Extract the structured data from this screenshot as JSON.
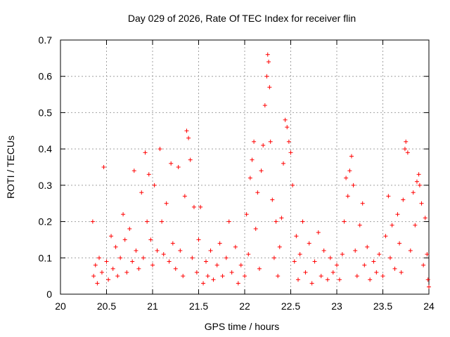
{
  "chart_data": {
    "type": "scatter",
    "title": "Day 029 of 2026, Rate Of TEC Index for receiver flin",
    "xlabel": "GPS time / hours",
    "ylabel": "ROTI / TECUs",
    "xlim": [
      20,
      24
    ],
    "ylim": [
      0,
      0.7
    ],
    "x_ticks": [
      20,
      20.5,
      21,
      21.5,
      22,
      22.5,
      23,
      23.5,
      24
    ],
    "x_tick_labels": [
      "20",
      "20.5",
      "21",
      "21.5",
      "22",
      "22.5",
      "23",
      "23.5",
      "24"
    ],
    "y_ticks": [
      0,
      0.1,
      0.2,
      0.3,
      0.4,
      0.5,
      0.6,
      0.7
    ],
    "y_tick_labels": [
      "0",
      "0.1",
      "0.2",
      "0.3",
      "0.4",
      "0.5",
      "0.6",
      "0.7"
    ],
    "grid": true,
    "marker": "+",
    "series": [
      {
        "color": "#ff0000",
        "points": [
          [
            20.35,
            0.2
          ],
          [
            20.36,
            0.05
          ],
          [
            20.38,
            0.08
          ],
          [
            20.4,
            0.03
          ],
          [
            20.42,
            0.1
          ],
          [
            20.45,
            0.06
          ],
          [
            20.47,
            0.35
          ],
          [
            20.5,
            0.09
          ],
          [
            20.52,
            0.04
          ],
          [
            20.55,
            0.16
          ],
          [
            20.57,
            0.07
          ],
          [
            20.6,
            0.13
          ],
          [
            20.62,
            0.05
          ],
          [
            20.65,
            0.1
          ],
          [
            20.68,
            0.22
          ],
          [
            20.7,
            0.15
          ],
          [
            20.72,
            0.06
          ],
          [
            20.75,
            0.18
          ],
          [
            20.78,
            0.09
          ],
          [
            20.8,
            0.34
          ],
          [
            20.82,
            0.12
          ],
          [
            20.85,
            0.07
          ],
          [
            20.88,
            0.28
          ],
          [
            20.9,
            0.1
          ],
          [
            20.92,
            0.39
          ],
          [
            20.94,
            0.2
          ],
          [
            20.96,
            0.33
          ],
          [
            20.98,
            0.15
          ],
          [
            21.0,
            0.08
          ],
          [
            21.02,
            0.3
          ],
          [
            21.05,
            0.12
          ],
          [
            21.08,
            0.4
          ],
          [
            21.1,
            0.2
          ],
          [
            21.12,
            0.11
          ],
          [
            21.15,
            0.25
          ],
          [
            21.18,
            0.09
          ],
          [
            21.2,
            0.36
          ],
          [
            21.22,
            0.14
          ],
          [
            21.25,
            0.07
          ],
          [
            21.28,
            0.35
          ],
          [
            21.3,
            0.12
          ],
          [
            21.33,
            0.05
          ],
          [
            21.35,
            0.27
          ],
          [
            21.37,
            0.45
          ],
          [
            21.39,
            0.43
          ],
          [
            21.41,
            0.37
          ],
          [
            21.43,
            0.1
          ],
          [
            21.45,
            0.24
          ],
          [
            21.48,
            0.06
          ],
          [
            21.5,
            0.15
          ],
          [
            21.52,
            0.24
          ],
          [
            21.55,
            0.03
          ],
          [
            21.58,
            0.09
          ],
          [
            21.6,
            0.05
          ],
          [
            21.63,
            0.12
          ],
          [
            21.66,
            0.04
          ],
          [
            21.7,
            0.08
          ],
          [
            21.73,
            0.14
          ],
          [
            21.76,
            0.05
          ],
          [
            21.8,
            0.1
          ],
          [
            21.83,
            0.2
          ],
          [
            21.86,
            0.06
          ],
          [
            21.9,
            0.13
          ],
          [
            21.93,
            0.03
          ],
          [
            21.96,
            0.08
          ],
          [
            22.0,
            0.05
          ],
          [
            22.02,
            0.22
          ],
          [
            22.04,
            0.11
          ],
          [
            22.06,
            0.32
          ],
          [
            22.08,
            0.37
          ],
          [
            22.1,
            0.42
          ],
          [
            22.12,
            0.18
          ],
          [
            22.14,
            0.28
          ],
          [
            22.16,
            0.07
          ],
          [
            22.18,
            0.34
          ],
          [
            22.2,
            0.41
          ],
          [
            22.22,
            0.52
          ],
          [
            22.24,
            0.6
          ],
          [
            22.25,
            0.66
          ],
          [
            22.26,
            0.64
          ],
          [
            22.27,
            0.57
          ],
          [
            22.28,
            0.42
          ],
          [
            22.3,
            0.26
          ],
          [
            22.32,
            0.1
          ],
          [
            22.34,
            0.2
          ],
          [
            22.36,
            0.05
          ],
          [
            22.38,
            0.13
          ],
          [
            22.4,
            0.21
          ],
          [
            22.42,
            0.36
          ],
          [
            22.44,
            0.48
          ],
          [
            22.46,
            0.46
          ],
          [
            22.48,
            0.42
          ],
          [
            22.5,
            0.39
          ],
          [
            22.52,
            0.3
          ],
          [
            22.54,
            0.09
          ],
          [
            22.56,
            0.16
          ],
          [
            22.58,
            0.04
          ],
          [
            22.6,
            0.11
          ],
          [
            22.63,
            0.2
          ],
          [
            22.66,
            0.06
          ],
          [
            22.7,
            0.14
          ],
          [
            22.73,
            0.03
          ],
          [
            22.76,
            0.09
          ],
          [
            22.8,
            0.17
          ],
          [
            22.83,
            0.05
          ],
          [
            22.86,
            0.12
          ],
          [
            22.9,
            0.04
          ],
          [
            22.93,
            0.1
          ],
          [
            22.96,
            0.06
          ],
          [
            23.0,
            0.08
          ],
          [
            23.03,
            0.04
          ],
          [
            23.06,
            0.11
          ],
          [
            23.08,
            0.2
          ],
          [
            23.1,
            0.32
          ],
          [
            23.12,
            0.27
          ],
          [
            23.14,
            0.34
          ],
          [
            23.16,
            0.38
          ],
          [
            23.18,
            0.3
          ],
          [
            23.2,
            0.12
          ],
          [
            23.22,
            0.05
          ],
          [
            23.25,
            0.19
          ],
          [
            23.28,
            0.25
          ],
          [
            23.3,
            0.08
          ],
          [
            23.33,
            0.13
          ],
          [
            23.36,
            0.04
          ],
          [
            23.4,
            0.09
          ],
          [
            23.43,
            0.06
          ],
          [
            23.46,
            0.11
          ],
          [
            23.5,
            0.05
          ],
          [
            23.53,
            0.16
          ],
          [
            23.56,
            0.27
          ],
          [
            23.58,
            0.1
          ],
          [
            23.6,
            0.19
          ],
          [
            23.63,
            0.07
          ],
          [
            23.66,
            0.22
          ],
          [
            23.68,
            0.14
          ],
          [
            23.7,
            0.06
          ],
          [
            23.72,
            0.26
          ],
          [
            23.74,
            0.4
          ],
          [
            23.75,
            0.42
          ],
          [
            23.77,
            0.39
          ],
          [
            23.8,
            0.12
          ],
          [
            23.83,
            0.28
          ],
          [
            23.85,
            0.19
          ],
          [
            23.87,
            0.31
          ],
          [
            23.89,
            0.33
          ],
          [
            23.9,
            0.3
          ],
          [
            23.92,
            0.25
          ],
          [
            23.94,
            0.08
          ],
          [
            23.96,
            0.21
          ],
          [
            23.98,
            0.11
          ],
          [
            23.99,
            0.04
          ],
          [
            24.0,
            0.02
          ]
        ]
      }
    ]
  }
}
